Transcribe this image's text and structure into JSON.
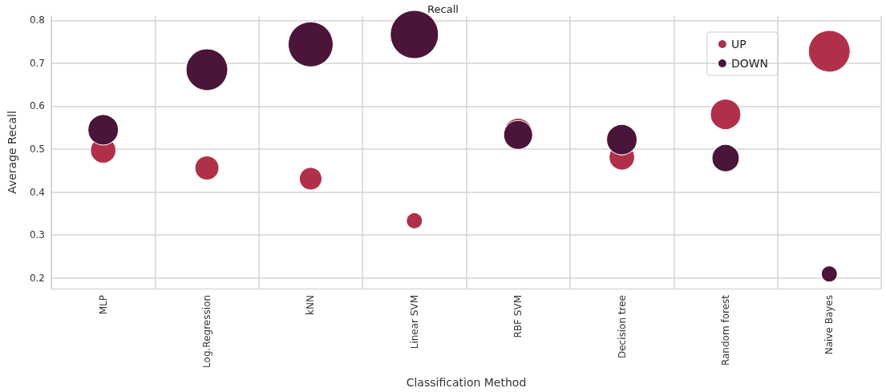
{
  "chart_data": {
    "type": "bubble",
    "title": "Recall",
    "xlabel": "Classification Method",
    "ylabel": "Average Recall",
    "categories": [
      "MLP",
      "Log.Regression",
      "kNN",
      "Linear SVM",
      "RBF SVM",
      "Decision tree",
      "Random forest",
      "Naive Bayes"
    ],
    "series": [
      {
        "name": "UP",
        "color": "#b0304a",
        "values": [
          0.497,
          0.456,
          0.431,
          0.333,
          0.54,
          0.481,
          0.581,
          0.728
        ],
        "sizes": [
          0.28,
          0.25,
          0.22,
          0.11,
          0.32,
          0.28,
          0.4,
          0.75
        ]
      },
      {
        "name": "DOWN",
        "color": "#4a1538",
        "values": [
          0.545,
          0.685,
          0.744,
          0.767,
          0.533,
          0.522,
          0.479,
          0.209
        ],
        "sizes": [
          0.4,
          0.75,
          0.87,
          1,
          0.36,
          0.4,
          0.32,
          0.11
        ]
      }
    ],
    "ylim": [
      0.175,
      0.81
    ],
    "yticks": [
      0.2,
      0.3,
      0.4,
      0.5,
      0.6,
      0.7,
      0.8
    ],
    "grid": true,
    "legend": "top right",
    "marker": "circle"
  }
}
